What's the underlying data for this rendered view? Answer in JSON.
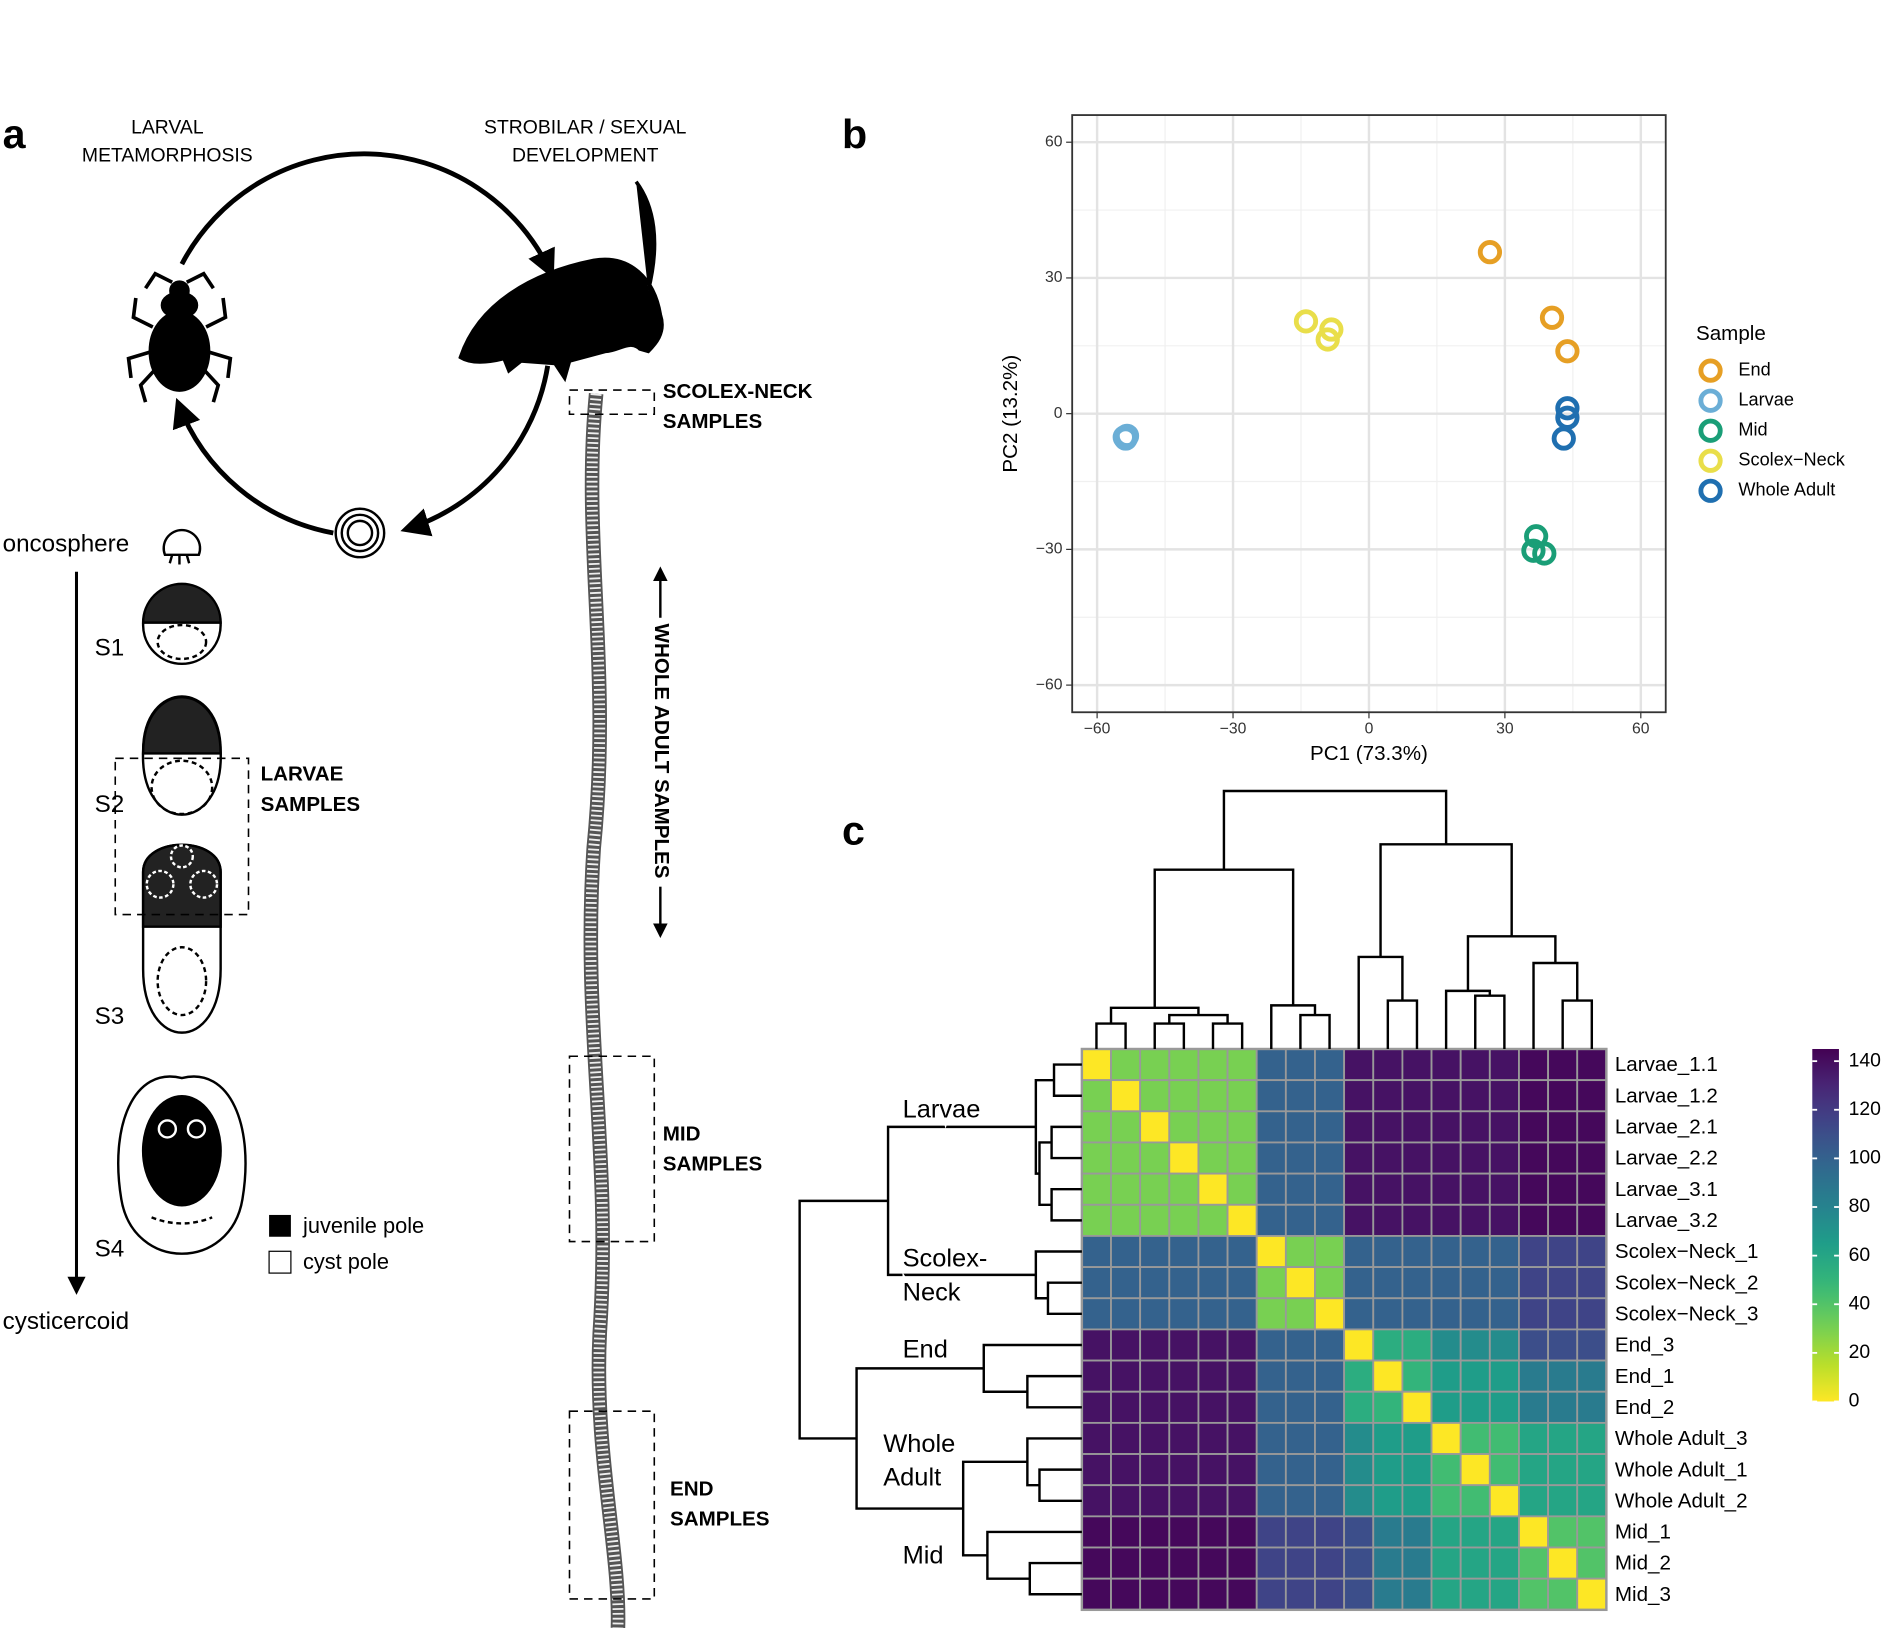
{
  "panel_labels": [
    "a",
    "b",
    "c"
  ],
  "diagram": {
    "larval_label": [
      "LARVAL",
      "METAMORPHOSIS"
    ],
    "strobilar_label": [
      "STROBILAR / SEXUAL",
      "DEVELOPMENT"
    ],
    "oncosphere": "oncosphere",
    "stages": [
      "S1",
      "S2",
      "S3",
      "S4"
    ],
    "cysticercoid": "cysticercoid",
    "legend": [
      "juvenile pole",
      "cyst pole"
    ],
    "larvae_samples": [
      "LARVAE",
      "SAMPLES"
    ],
    "scolex_samples": [
      "SCOLEX-NECK",
      "SAMPLES"
    ],
    "whole_samples": "WHOLE ADULT SAMPLES",
    "mid_samples": [
      "MID",
      "SAMPLES"
    ],
    "end_samples": [
      "END",
      "SAMPLES"
    ]
  },
  "chart_data": [
    {
      "type": "scatter",
      "xlabel": "PC1 (73.3%)",
      "ylabel": "PC2 (13.2%)",
      "legend_title": "Sample",
      "legend": "right",
      "grid": true,
      "xlim": [
        -65.5,
        65.5
      ],
      "ylim": [
        -66,
        66
      ],
      "xticks": [
        {
          "value": -60,
          "label": "−60"
        },
        {
          "value": -30,
          "label": "−30"
        },
        0,
        30,
        60
      ],
      "yticks": [
        {
          "value": -60,
          "label": "−60"
        },
        {
          "value": -30,
          "label": "−30"
        },
        0,
        30,
        60
      ],
      "series": [
        {
          "name": "End",
          "color": "#e69f24",
          "x": [
            26.7,
            40.4,
            43.8
          ],
          "values": [
            35.7,
            21.2,
            13.8
          ]
        },
        {
          "name": "Larvae",
          "color": "#6baed6",
          "x": [
            -53.7,
            -53.4,
            -53.9
          ],
          "values": [
            -5.5,
            -4.9,
            -5.2
          ]
        },
        {
          "name": "Mid",
          "color": "#1a9e77",
          "x": [
            36.9,
            36.3,
            38.7
          ],
          "values": [
            -27.1,
            -30.3,
            -30.9
          ]
        },
        {
          "name": "Scolex−Neck",
          "color": "#e9de4a",
          "x": [
            -13.9,
            -8.3,
            -9.1
          ],
          "values": [
            20.4,
            18.6,
            16.4
          ]
        },
        {
          "name": "Whole Adult",
          "color": "#1f6fb0",
          "x": [
            43.8,
            43.8,
            43.0
          ],
          "values": [
            1.2,
            -0.9,
            -5.5
          ]
        }
      ]
    },
    {
      "type": "heatmap",
      "categories": [
        "Larvae_1.1",
        "Larvae_1.2",
        "Larvae_2.1",
        "Larvae_2.2",
        "Larvae_3.1",
        "Larvae_3.2",
        "Scolex−Neck_1",
        "Scolex−Neck_2",
        "Scolex−Neck_3",
        "End_3",
        "End_1",
        "End_2",
        "Whole Adult_3",
        "Whole Adult_1",
        "Whole Adult_2",
        "Mid_1",
        "Mid_2",
        "Mid_3"
      ],
      "row_groups": [
        [
          "Larvae"
        ],
        [
          "Scolex-",
          "Neck"
        ],
        [
          "End"
        ],
        [
          "Whole",
          "Adult"
        ],
        [
          "Mid"
        ]
      ],
      "values": [
        [
          0,
          30,
          30,
          30,
          30,
          30,
          100,
          100,
          100,
          138,
          138,
          138,
          138,
          138,
          138,
          142,
          142,
          142
        ],
        [
          30,
          0,
          30,
          30,
          30,
          30,
          100,
          100,
          100,
          138,
          138,
          138,
          138,
          138,
          138,
          142,
          142,
          142
        ],
        [
          30,
          30,
          0,
          30,
          30,
          30,
          100,
          100,
          100,
          138,
          138,
          138,
          138,
          138,
          138,
          142,
          142,
          142
        ],
        [
          30,
          30,
          30,
          0,
          30,
          30,
          100,
          100,
          100,
          138,
          138,
          138,
          138,
          138,
          138,
          142,
          142,
          142
        ],
        [
          30,
          30,
          30,
          30,
          0,
          30,
          100,
          100,
          100,
          138,
          138,
          138,
          138,
          138,
          138,
          142,
          142,
          142
        ],
        [
          30,
          30,
          30,
          30,
          30,
          0,
          100,
          100,
          100,
          138,
          138,
          138,
          138,
          138,
          138,
          142,
          142,
          142
        ],
        [
          100,
          100,
          100,
          100,
          100,
          100,
          0,
          30,
          30,
          100,
          100,
          100,
          100,
          100,
          100,
          115,
          115,
          115
        ],
        [
          100,
          100,
          100,
          100,
          100,
          100,
          30,
          0,
          30,
          100,
          100,
          100,
          100,
          100,
          100,
          115,
          115,
          115
        ],
        [
          100,
          100,
          100,
          100,
          100,
          100,
          30,
          30,
          0,
          100,
          100,
          100,
          100,
          100,
          100,
          115,
          115,
          115
        ],
        [
          138,
          138,
          138,
          138,
          138,
          138,
          100,
          100,
          100,
          0,
          55,
          55,
          75,
          75,
          75,
          110,
          110,
          110
        ],
        [
          138,
          138,
          138,
          138,
          138,
          138,
          100,
          100,
          100,
          55,
          0,
          50,
          65,
          65,
          65,
          85,
          85,
          85
        ],
        [
          138,
          138,
          138,
          138,
          138,
          138,
          100,
          100,
          100,
          55,
          50,
          0,
          65,
          65,
          65,
          85,
          85,
          85
        ],
        [
          138,
          138,
          138,
          138,
          138,
          138,
          100,
          100,
          100,
          75,
          65,
          65,
          0,
          45,
          45,
          60,
          60,
          60
        ],
        [
          138,
          138,
          138,
          138,
          138,
          138,
          100,
          100,
          100,
          75,
          65,
          65,
          45,
          0,
          45,
          60,
          60,
          60
        ],
        [
          138,
          138,
          138,
          138,
          138,
          138,
          100,
          100,
          100,
          75,
          65,
          65,
          45,
          45,
          0,
          60,
          60,
          60
        ],
        [
          142,
          142,
          142,
          142,
          142,
          142,
          115,
          115,
          115,
          110,
          85,
          85,
          60,
          60,
          60,
          0,
          40,
          40
        ],
        [
          142,
          142,
          142,
          142,
          142,
          142,
          115,
          115,
          115,
          110,
          85,
          85,
          60,
          60,
          60,
          40,
          0,
          40
        ],
        [
          142,
          142,
          142,
          142,
          142,
          142,
          115,
          115,
          115,
          110,
          85,
          85,
          60,
          60,
          60,
          40,
          40,
          0
        ]
      ],
      "colorbar": {
        "lim": [
          0,
          145
        ],
        "ticks": [
          0,
          20,
          40,
          60,
          80,
          100,
          120,
          140
        ]
      }
    }
  ]
}
